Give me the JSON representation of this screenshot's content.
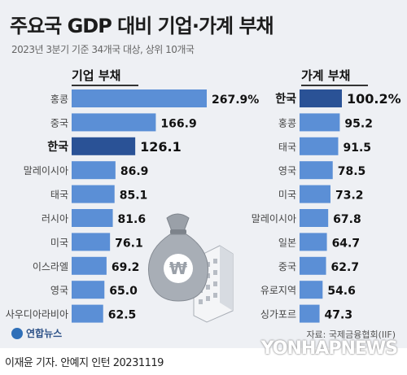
{
  "header": {
    "title": "주요국 GDP 대비 기업·가계 부채",
    "subtitle": "2023년 3분기 기준 34개국 대상, 상위 10개국"
  },
  "chart_data": [
    {
      "type": "bar",
      "orientation": "horizontal",
      "title": "기업 부채",
      "unit": "%",
      "categories": [
        "홍콩",
        "중국",
        "한국",
        "말레이시아",
        "태국",
        "러시아",
        "미국",
        "이스라엘",
        "영국",
        "사우디아라비아"
      ],
      "values": [
        267.9,
        166.9,
        126.1,
        86.9,
        85.1,
        81.6,
        76.1,
        69.2,
        65.0,
        62.5
      ],
      "labels": [
        "267.9%",
        "166.9",
        "126.1",
        "86.9",
        "85.1",
        "81.6",
        "76.1",
        "69.2",
        "65.0",
        "62.5"
      ],
      "highlight": "한국",
      "xlim": [
        0,
        267.9
      ]
    },
    {
      "type": "bar",
      "orientation": "horizontal",
      "title": "가계 부채",
      "unit": "%",
      "categories": [
        "한국",
        "홍콩",
        "태국",
        "영국",
        "미국",
        "말레이시아",
        "일본",
        "중국",
        "유로지역",
        "싱가포르"
      ],
      "values": [
        100.2,
        95.2,
        91.5,
        78.5,
        73.2,
        67.8,
        64.7,
        62.7,
        54.6,
        47.3
      ],
      "labels": [
        "100.2%",
        "95.2",
        "91.5",
        "78.5",
        "73.2",
        "67.8",
        "64.7",
        "62.7",
        "54.6",
        "47.3"
      ],
      "highlight": "한국",
      "xlim": [
        0,
        100.2
      ]
    }
  ],
  "colors": {
    "bar": "#5b8fd6",
    "highlight": "#2a5296",
    "background": "#eef0f4"
  },
  "illustration": {
    "icons": [
      "money-bag-icon",
      "won-sign-icon",
      "building-icon"
    ]
  },
  "source": "자료: 국제금융협회(IIF)",
  "brand": "연합뉴스",
  "footer": "이재윤 기자. 안예지 인턴  20231119",
  "watermark": "YONHAPNEWS"
}
